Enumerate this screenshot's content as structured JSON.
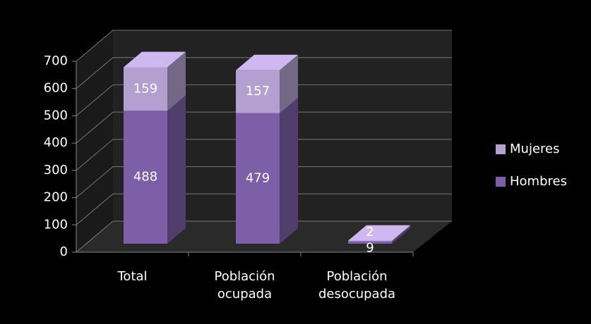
{
  "chart_data": {
    "type": "bar3d_stacked",
    "categories": [
      "Total",
      "Población ocupada",
      "Población desocupada"
    ],
    "series": [
      {
        "name": "Hombres",
        "color": "#7d5fa8",
        "values": [
          488,
          479,
          9
        ]
      },
      {
        "name": "Mujeres",
        "color": "#b3a0d0",
        "values": [
          159,
          157,
          2
        ]
      }
    ],
    "ylim": [
      0,
      700
    ],
    "yticks": [
      0,
      100,
      200,
      300,
      400,
      500,
      600,
      700
    ],
    "grid": true,
    "legend": "right"
  }
}
